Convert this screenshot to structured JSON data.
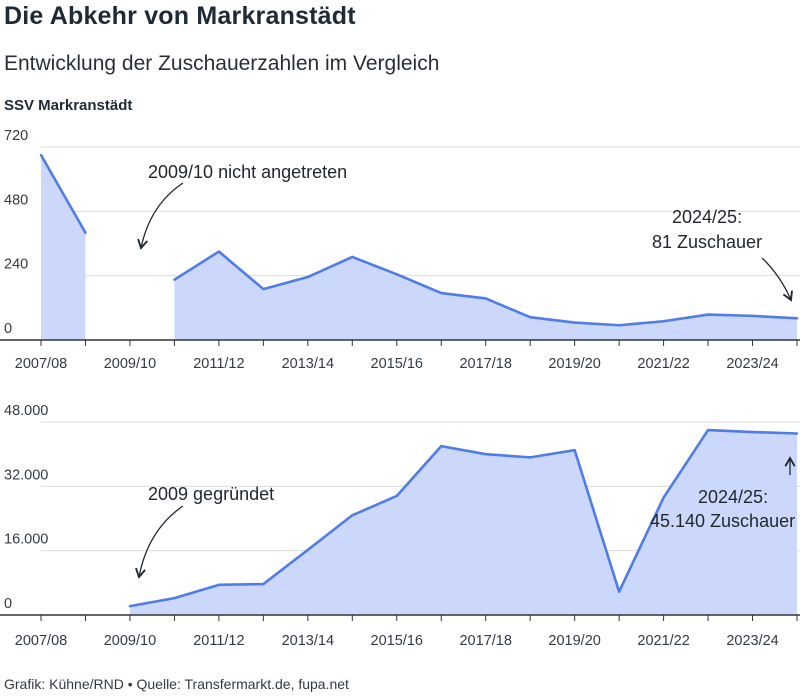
{
  "header": {
    "title": "Die Abkehr von Markranstädt",
    "subtitle": "Entwicklung der Zuschauerzahlen im Vergleich"
  },
  "footer": {
    "credit": "Grafik: Kühne/RND • Quelle: Transfermarkt.de, fupa.net"
  },
  "colors": {
    "line": "#4f7ce6",
    "fill": "#cbd8fb",
    "grid": "#dcdcdc",
    "axis": "#333333"
  },
  "chart_data": [
    {
      "type": "area",
      "ylabel": "SSV Markranstädt",
      "x": [
        "2007/08",
        "2008/09",
        "2009/10",
        "2010/11",
        "2011/12",
        "2012/13",
        "2013/14",
        "2014/15",
        "2015/16",
        "2016/17",
        "2017/18",
        "2018/19",
        "2019/20",
        "2020/21",
        "2021/22",
        "2022/23",
        "2023/24",
        "2024/25"
      ],
      "values": [
        690,
        400,
        null,
        225,
        330,
        190,
        235,
        310,
        245,
        175,
        155,
        85,
        65,
        55,
        70,
        95,
        90,
        81
      ],
      "ylim": [
        0,
        720
      ],
      "yticks": [
        "0",
        "240",
        "480",
        "720"
      ],
      "xtick_labels": [
        "2007/08",
        "2009/10",
        "2011/12",
        "2013/14",
        "2015/16",
        "2017/18",
        "2019/20",
        "2021/22",
        "2023/24"
      ],
      "grid": true,
      "annotations": [
        {
          "lines": [
            "2009/10 nicht angetreten"
          ]
        },
        {
          "lines": [
            "2024/25:",
            "81 Zuschauer"
          ]
        }
      ]
    },
    {
      "type": "area",
      "x": [
        "2007/08",
        "2008/09",
        "2009/10",
        "2010/11",
        "2011/12",
        "2012/13",
        "2013/14",
        "2014/15",
        "2015/16",
        "2016/17",
        "2017/18",
        "2018/19",
        "2019/20",
        "2020/21",
        "2021/22",
        "2022/23",
        "2023/24",
        "2024/25"
      ],
      "values": [
        null,
        null,
        2200,
        4200,
        7500,
        7700,
        16200,
        24800,
        29600,
        42000,
        40000,
        39200,
        41000,
        5800,
        29200,
        46000,
        45500,
        45140
      ],
      "ylim": [
        0,
        48000
      ],
      "yticks": [
        "0",
        "16.000",
        "32.000",
        "48.000"
      ],
      "xtick_labels": [
        "2007/08",
        "2009/10",
        "2011/12",
        "2013/14",
        "2015/16",
        "2017/18",
        "2019/20",
        "2021/22",
        "2023/24"
      ],
      "grid": true,
      "annotations": [
        {
          "lines": [
            "2009 gegründet"
          ]
        },
        {
          "lines": [
            "2024/25:",
            "45.140 Zuschauer"
          ]
        }
      ]
    }
  ]
}
